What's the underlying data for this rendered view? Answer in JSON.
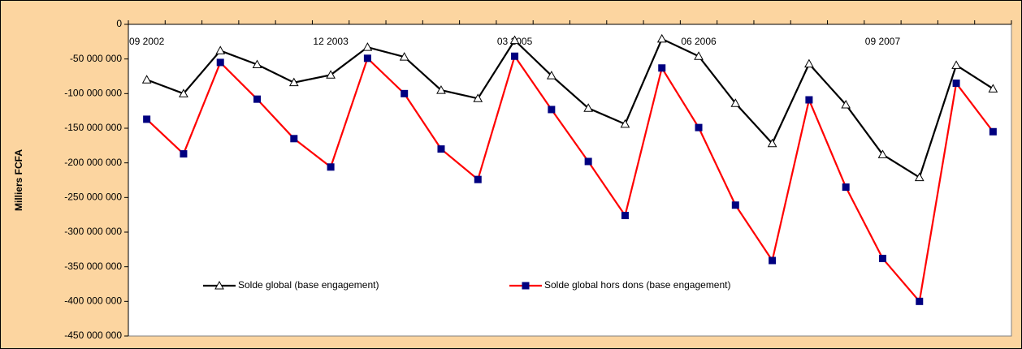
{
  "chart_data": {
    "type": "line",
    "y_label": "Milliers FCFA",
    "categories": [
      "09 2002",
      null,
      null,
      null,
      null,
      "12 2003",
      null,
      null,
      null,
      null,
      "03 2005",
      null,
      null,
      null,
      null,
      "06 2006",
      null,
      null,
      null,
      null,
      "09 2007",
      null,
      null,
      null
    ],
    "series": [
      {
        "name": "Solde global (base engagement)",
        "color": "#000000",
        "marker": "triangle",
        "marker_fill": "#ffffff",
        "values": [
          -80000000,
          -100000000,
          -38000000,
          -58000000,
          -84000000,
          -73000000,
          -33000000,
          -47000000,
          -95000000,
          -107000000,
          -23000000,
          -74000000,
          -121000000,
          -144000000,
          -21000000,
          -46000000,
          -114000000,
          -172000000,
          -57000000,
          -116000000,
          -188000000,
          -221000000,
          -59000000,
          -93000000
        ]
      },
      {
        "name": "Solde global hors dons (base engagement)",
        "color": "#ff0000",
        "marker": "square",
        "marker_fill": "#000080",
        "values": [
          -137000000,
          -187000000,
          -55000000,
          -108000000,
          -165000000,
          -206000000,
          -49000000,
          -100000000,
          -180000000,
          -224000000,
          -46000000,
          -123000000,
          -198000000,
          -276000000,
          -63000000,
          -149000000,
          -261000000,
          -341000000,
          -109000000,
          -235000000,
          -338000000,
          -400000000,
          -85000000,
          -155000000
        ]
      }
    ],
    "ylim": [
      -450000000,
      0
    ],
    "yticks": [
      {
        "value": 0,
        "label": "0"
      },
      {
        "value": -50000000,
        "label": "-50 000 000"
      },
      {
        "value": -100000000,
        "label": "-100 000 000"
      },
      {
        "value": -150000000,
        "label": "-150 000 000"
      },
      {
        "value": -200000000,
        "label": "-200 000 000"
      },
      {
        "value": -250000000,
        "label": "-250 000 000"
      },
      {
        "value": -300000000,
        "label": "-300 000 000"
      },
      {
        "value": -350000000,
        "label": "-350 000 000"
      },
      {
        "value": -400000000,
        "label": "-400 000 000"
      },
      {
        "value": -450000000,
        "label": "-450 000 000"
      }
    ],
    "grid": false,
    "legend": "bottom"
  }
}
